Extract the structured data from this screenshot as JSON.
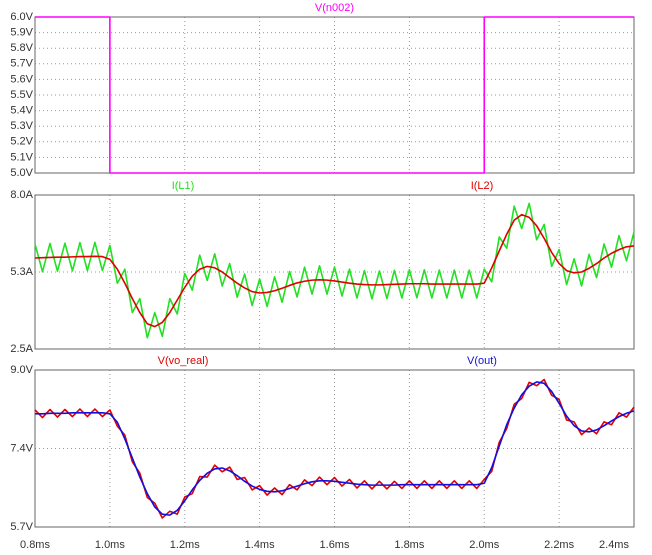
{
  "chart_data": [
    {
      "type": "line",
      "xlim": [
        0.8,
        2.4
      ],
      "ylim": [
        5.0,
        6.0
      ],
      "grid": true,
      "yticks": [
        {
          "value": 5.0,
          "label": "5.0V"
        },
        {
          "value": 5.1,
          "label": "5.1V"
        },
        {
          "value": 5.2,
          "label": "5.2V"
        },
        {
          "value": 5.3,
          "label": "5.3V"
        },
        {
          "value": 5.4,
          "label": "5.4V"
        },
        {
          "value": 5.5,
          "label": "5.5V"
        },
        {
          "value": 5.6,
          "label": "5.6V"
        },
        {
          "value": 5.7,
          "label": "5.7V"
        },
        {
          "value": 5.8,
          "label": "5.8V"
        },
        {
          "value": 5.9,
          "label": "5.9V"
        },
        {
          "value": 6.0,
          "label": "6.0V"
        }
      ],
      "x": [
        0.8,
        1.0,
        1.0,
        2.0,
        2.0,
        2.4
      ],
      "series": [
        {
          "name": "V(n002)",
          "color": "#ff00ff",
          "values": [
            6.0,
            6.0,
            5.0,
            5.0,
            6.0,
            6.0
          ]
        }
      ]
    },
    {
      "type": "line",
      "xlim": [
        0.8,
        2.4
      ],
      "ylim": [
        2.5,
        8.0
      ],
      "grid": true,
      "yticks": [
        {
          "value": 2.5,
          "label": "2.5A"
        },
        {
          "value": 5.25,
          "label": "5.3A"
        },
        {
          "value": 8.0,
          "label": "8.0A"
        }
      ],
      "x": [
        0.8,
        0.82,
        0.84,
        0.86,
        0.88,
        0.9,
        0.92,
        0.94,
        0.96,
        0.98,
        1.0,
        1.02,
        1.04,
        1.06,
        1.08,
        1.1,
        1.12,
        1.14,
        1.16,
        1.18,
        1.2,
        1.22,
        1.24,
        1.26,
        1.28,
        1.3,
        1.32,
        1.34,
        1.36,
        1.38,
        1.4,
        1.42,
        1.44,
        1.46,
        1.48,
        1.5,
        1.52,
        1.54,
        1.56,
        1.58,
        1.6,
        1.62,
        1.64,
        1.66,
        1.68,
        1.7,
        1.72,
        1.74,
        1.76,
        1.78,
        1.8,
        1.82,
        1.84,
        1.86,
        1.88,
        1.9,
        1.92,
        1.94,
        1.96,
        1.98,
        2.0,
        2.02,
        2.04,
        2.06,
        2.08,
        2.1,
        2.12,
        2.14,
        2.16,
        2.18,
        2.2,
        2.22,
        2.24,
        2.26,
        2.28,
        2.3,
        2.32,
        2.34,
        2.36,
        2.38,
        2.4
      ],
      "series": [
        {
          "name": "I(L1)",
          "color": "#22e022",
          "values": [
            6.25,
            5.26,
            6.27,
            5.28,
            6.28,
            5.29,
            6.3,
            5.3,
            6.31,
            5.3,
            6.2,
            4.85,
            5.35,
            3.8,
            4.3,
            2.9,
            3.8,
            2.95,
            4.3,
            3.75,
            5.2,
            4.6,
            5.85,
            4.95,
            5.9,
            4.75,
            5.55,
            4.35,
            5.18,
            4.05,
            5.0,
            4.02,
            5.08,
            4.17,
            5.27,
            4.36,
            5.42,
            4.46,
            5.47,
            4.46,
            5.43,
            4.39,
            5.35,
            4.32,
            5.3,
            4.29,
            5.29,
            4.3,
            5.31,
            4.32,
            5.33,
            4.33,
            5.33,
            4.32,
            5.32,
            4.32,
            5.32,
            4.32,
            5.32,
            4.32,
            5.35,
            4.9,
            6.5,
            6.1,
            7.6,
            6.8,
            7.7,
            6.4,
            6.95,
            5.45,
            6.05,
            4.8,
            5.72,
            4.75,
            5.88,
            5.05,
            6.25,
            5.42,
            6.55,
            5.65,
            6.68
          ]
        },
        {
          "name": "I(L2)",
          "color": "#e00000",
          "values": [
            5.75,
            5.76,
            5.77,
            5.78,
            5.78,
            5.79,
            5.8,
            5.8,
            5.81,
            5.8,
            5.7,
            5.35,
            4.85,
            4.3,
            3.8,
            3.4,
            3.3,
            3.45,
            3.8,
            4.25,
            4.7,
            5.1,
            5.35,
            5.45,
            5.4,
            5.25,
            5.05,
            4.85,
            4.68,
            4.55,
            4.5,
            4.52,
            4.58,
            4.67,
            4.77,
            4.86,
            4.92,
            4.96,
            4.97,
            4.96,
            4.93,
            4.89,
            4.85,
            4.82,
            4.8,
            4.79,
            4.79,
            4.8,
            4.81,
            4.82,
            4.83,
            4.83,
            4.83,
            4.82,
            4.82,
            4.82,
            4.82,
            4.82,
            4.82,
            4.82,
            4.85,
            5.4,
            6.0,
            6.6,
            7.1,
            7.3,
            7.2,
            6.9,
            6.45,
            5.95,
            5.55,
            5.3,
            5.22,
            5.25,
            5.38,
            5.55,
            5.75,
            5.92,
            6.05,
            6.15,
            6.18
          ]
        }
      ]
    },
    {
      "type": "line",
      "xlim": [
        0.8,
        2.4
      ],
      "ylim": [
        5.7,
        9.0
      ],
      "grid": true,
      "yticks": [
        {
          "value": 5.7,
          "label": "5.7V"
        },
        {
          "value": 7.35,
          "label": "7.4V"
        },
        {
          "value": 9.0,
          "label": "9.0V"
        }
      ],
      "xticks": [
        {
          "value": 0.8,
          "label": "0.8ms"
        },
        {
          "value": 1.0,
          "label": "1.0ms"
        },
        {
          "value": 1.2,
          "label": "1.2ms"
        },
        {
          "value": 1.4,
          "label": "1.4ms"
        },
        {
          "value": 1.6,
          "label": "1.6ms"
        },
        {
          "value": 1.8,
          "label": "1.8ms"
        },
        {
          "value": 2.0,
          "label": "2.0ms"
        },
        {
          "value": 2.2,
          "label": "2.2ms"
        },
        {
          "value": 2.4,
          "label": "2.4ms"
        }
      ],
      "x": [
        0.8,
        0.82,
        0.84,
        0.86,
        0.88,
        0.9,
        0.92,
        0.94,
        0.96,
        0.98,
        1.0,
        1.02,
        1.04,
        1.06,
        1.08,
        1.1,
        1.12,
        1.14,
        1.16,
        1.18,
        1.2,
        1.22,
        1.24,
        1.26,
        1.28,
        1.3,
        1.32,
        1.34,
        1.36,
        1.38,
        1.4,
        1.42,
        1.44,
        1.46,
        1.48,
        1.5,
        1.52,
        1.54,
        1.56,
        1.58,
        1.6,
        1.62,
        1.64,
        1.66,
        1.68,
        1.7,
        1.72,
        1.74,
        1.76,
        1.78,
        1.8,
        1.82,
        1.84,
        1.86,
        1.88,
        1.9,
        1.92,
        1.94,
        1.96,
        1.98,
        2.0,
        2.02,
        2.04,
        2.06,
        2.08,
        2.1,
        2.12,
        2.14,
        2.16,
        2.18,
        2.2,
        2.22,
        2.24,
        2.26,
        2.28,
        2.3,
        2.32,
        2.34,
        2.36,
        2.38,
        2.4
      ],
      "series": [
        {
          "name": "V(vo_real)",
          "color": "#e00000",
          "values": [
            8.16,
            8.0,
            8.17,
            8.01,
            8.17,
            8.02,
            8.18,
            8.02,
            8.18,
            8.02,
            8.16,
            7.82,
            7.63,
            7.07,
            6.83,
            6.32,
            6.2,
            5.89,
            6.03,
            5.97,
            6.33,
            6.4,
            6.76,
            6.75,
            7.0,
            6.86,
            6.96,
            6.7,
            6.74,
            6.48,
            6.57,
            6.37,
            6.52,
            6.38,
            6.59,
            6.48,
            6.69,
            6.57,
            6.75,
            6.59,
            6.74,
            6.56,
            6.7,
            6.52,
            6.67,
            6.5,
            6.66,
            6.5,
            6.66,
            6.51,
            6.67,
            6.51,
            6.67,
            6.51,
            6.67,
            6.51,
            6.67,
            6.51,
            6.67,
            6.51,
            6.7,
            6.87,
            7.48,
            7.77,
            8.28,
            8.4,
            8.74,
            8.67,
            8.8,
            8.47,
            8.38,
            7.95,
            7.91,
            7.64,
            7.78,
            7.66,
            7.91,
            7.85,
            8.1,
            8.01,
            8.22
          ]
        },
        {
          "name": "V(out)",
          "color": "#1010e0",
          "values": [
            8.08,
            8.08,
            8.09,
            8.09,
            8.09,
            8.1,
            8.1,
            8.1,
            8.1,
            8.1,
            8.08,
            7.9,
            7.55,
            7.15,
            6.75,
            6.4,
            6.12,
            5.97,
            5.95,
            6.05,
            6.25,
            6.48,
            6.68,
            6.83,
            6.92,
            6.94,
            6.88,
            6.78,
            6.66,
            6.56,
            6.49,
            6.45,
            6.44,
            6.46,
            6.51,
            6.56,
            6.61,
            6.65,
            6.67,
            6.67,
            6.66,
            6.64,
            6.62,
            6.6,
            6.59,
            6.58,
            6.58,
            6.58,
            6.58,
            6.59,
            6.59,
            6.59,
            6.59,
            6.59,
            6.59,
            6.59,
            6.59,
            6.59,
            6.59,
            6.59,
            6.62,
            6.95,
            7.4,
            7.85,
            8.2,
            8.48,
            8.66,
            8.75,
            8.72,
            8.55,
            8.3,
            8.03,
            7.83,
            7.72,
            7.7,
            7.74,
            7.83,
            7.93,
            8.02,
            8.09,
            8.14
          ]
        }
      ]
    }
  ]
}
